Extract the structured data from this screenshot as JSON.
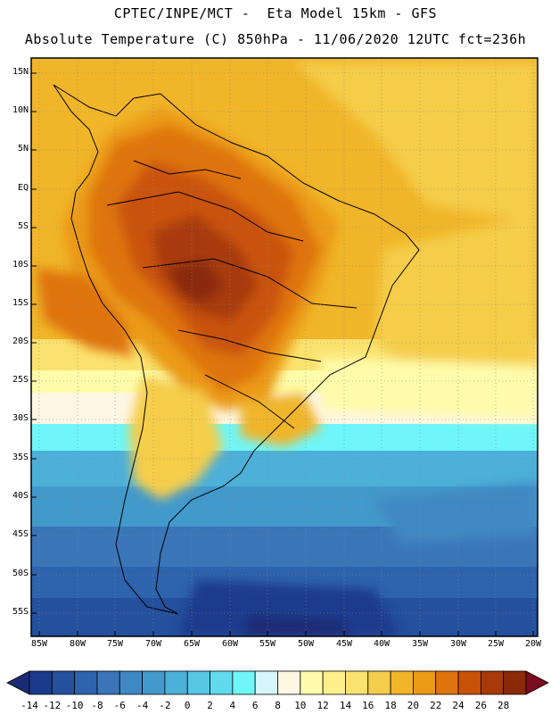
{
  "header": {
    "line1": "CPTEC/INPE/MCT -  Eta Model 15km - GFS",
    "line2": "Absolute Temperature (C) 850hPa - 11/06/2020 12UTC fct=236h"
  },
  "map": {
    "variable": "Absolute Temperature (C) 850hPa",
    "region": "South America",
    "lat_labels": [
      "15N",
      "10N",
      "5N",
      "EQ",
      "5S",
      "10S",
      "15S",
      "20S",
      "25S",
      "30S",
      "35S",
      "40S",
      "45S",
      "50S",
      "55S"
    ],
    "lon_labels": [
      "85W",
      "80W",
      "75W",
      "70W",
      "65W",
      "60W",
      "55W",
      "50W",
      "45W",
      "40W",
      "35W",
      "30W",
      "25W",
      "20W"
    ]
  },
  "colorbar": {
    "labels": [
      "-14",
      "-12",
      "-10",
      "-8",
      "-6",
      "-4",
      "-2",
      "0",
      "2",
      "4",
      "6",
      "8",
      "10",
      "12",
      "14",
      "16",
      "18",
      "20",
      "22",
      "24",
      "26",
      "28"
    ],
    "colors": [
      "#1a3b8c",
      "#24509e",
      "#2e63ad",
      "#3a75b8",
      "#3f88c3",
      "#4299cb",
      "#4cb0d8",
      "#55c7e5",
      "#60dbee",
      "#6ff6f8",
      "#d6f6fb",
      "#fdf6e3",
      "#fefcaa",
      "#fdf08c",
      "#fbe26e",
      "#f5cd4a",
      "#f0b529",
      "#eb9a16",
      "#df730d",
      "#c9520b",
      "#a83a0a",
      "#8a2a0a"
    ],
    "min_color": "#1a2a75",
    "max_color": "#7a0d1f"
  }
}
